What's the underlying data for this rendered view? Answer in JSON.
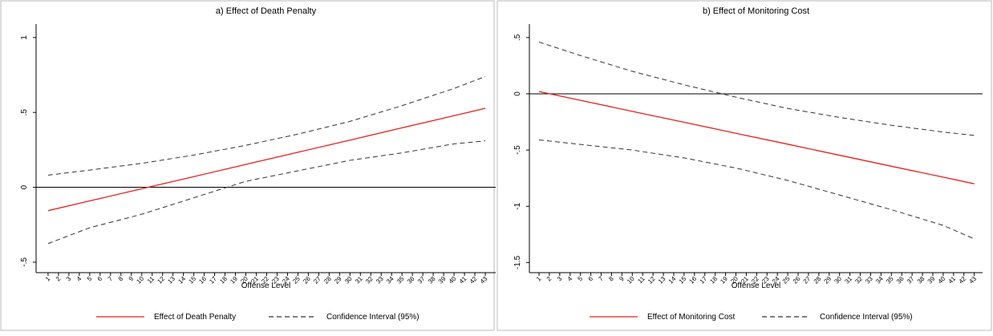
{
  "chart_data": [
    {
      "type": "line",
      "title": "a) Effect of Death Penalty",
      "x_label": "Offense Level",
      "x": [
        1,
        5,
        10,
        15,
        20,
        25,
        30,
        35,
        40,
        43
      ],
      "xlim": [
        -0.15,
        44
      ],
      "xticks": [
        1,
        2,
        3,
        4,
        5,
        6,
        7,
        8,
        9,
        10,
        11,
        12,
        13,
        14,
        15,
        16,
        17,
        18,
        19,
        20,
        21,
        22,
        23,
        24,
        25,
        26,
        27,
        28,
        29,
        30,
        31,
        32,
        33,
        34,
        35,
        36,
        37,
        38,
        39,
        40,
        41,
        42,
        43
      ],
      "ylim": [
        -0.57,
        1.09
      ],
      "yticks": [
        {
          "value": -0.5,
          "label": "-.5"
        },
        0,
        {
          "value": 0.5,
          "label": ".5"
        },
        1
      ],
      "reference_line": 0,
      "series": [
        {
          "name": "Effect of Death Penalty",
          "color": "#e8201c",
          "dashed": false,
          "values": [
            -0.156,
            -0.091,
            -0.01,
            0.071,
            0.153,
            0.234,
            0.315,
            0.397,
            0.478,
            0.527
          ]
        },
        {
          "name": "Confidence Interval (95%)",
          "color": "#333333",
          "dashed": true,
          "upper": [
            0.081,
            0.115,
            0.16,
            0.215,
            0.28,
            0.355,
            0.44,
            0.545,
            0.66,
            0.74
          ],
          "lower": [
            -0.376,
            -0.27,
            -0.18,
            -0.07,
            0.04,
            0.11,
            0.18,
            0.23,
            0.29,
            0.31
          ]
        }
      ]
    },
    {
      "type": "line",
      "title": "b) Effect of Monitoring Cost",
      "x_label": "Offense Level",
      "x": [
        1,
        5,
        10,
        15,
        20,
        25,
        30,
        35,
        40,
        43
      ],
      "xlim": [
        0.07,
        43.8
      ],
      "xticks": [
        1,
        2,
        3,
        4,
        5,
        6,
        7,
        8,
        9,
        10,
        11,
        12,
        13,
        14,
        15,
        16,
        17,
        18,
        19,
        20,
        21,
        22,
        23,
        24,
        25,
        26,
        27,
        28,
        29,
        30,
        31,
        32,
        33,
        34,
        35,
        36,
        37,
        38,
        39,
        40,
        41,
        42,
        43
      ],
      "ylim": [
        -1.59,
        0.62
      ],
      "yticks": [
        {
          "value": -1.5,
          "label": "-1.5"
        },
        -1,
        {
          "value": -0.5,
          "label": "-.5"
        },
        0,
        {
          "value": 0.5,
          "label": ".5"
        }
      ],
      "reference_line": 0,
      "series": [
        {
          "name": "Effect of Monitoring Cost",
          "color": "#e8201c",
          "dashed": false,
          "values": [
            0.02,
            -0.058,
            -0.156,
            -0.253,
            -0.351,
            -0.448,
            -0.546,
            -0.644,
            -0.741,
            -0.8
          ]
        },
        {
          "name": "Confidence Interval (95%)",
          "color": "#333333",
          "dashed": true,
          "upper": [
            0.46,
            0.34,
            0.2,
            0.08,
            -0.03,
            -0.13,
            -0.21,
            -0.28,
            -0.34,
            -0.37
          ],
          "lower": [
            -0.41,
            -0.45,
            -0.5,
            -0.57,
            -0.66,
            -0.77,
            -0.9,
            -1.03,
            -1.17,
            -1.29
          ]
        }
      ]
    }
  ]
}
